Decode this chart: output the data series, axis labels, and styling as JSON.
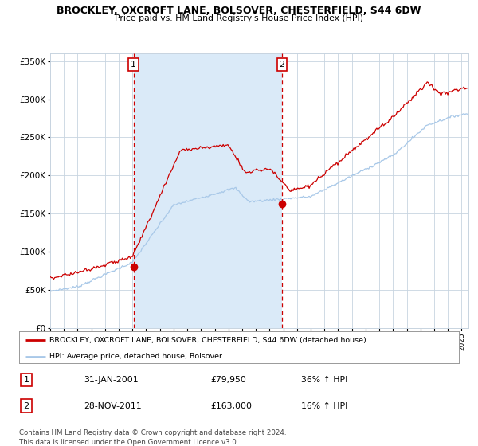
{
  "title": "BROCKLEY, OXCROFT LANE, BOLSOVER, CHESTERFIELD, S44 6DW",
  "subtitle": "Price paid vs. HM Land Registry's House Price Index (HPI)",
  "legend_line1": "BROCKLEY, OXCROFT LANE, BOLSOVER, CHESTERFIELD, S44 6DW (detached house)",
  "legend_line2": "HPI: Average price, detached house, Bolsover",
  "table_rows": [
    {
      "num": "1",
      "date": "31-JAN-2001",
      "price": "£79,950",
      "hpi": "36% ↑ HPI"
    },
    {
      "num": "2",
      "date": "28-NOV-2011",
      "price": "£163,000",
      "hpi": "16% ↑ HPI"
    }
  ],
  "footer": "Contains HM Land Registry data © Crown copyright and database right 2024.\nThis data is licensed under the Open Government Licence v3.0.",
  "ylim": [
    0,
    360000
  ],
  "yticks": [
    0,
    50000,
    100000,
    150000,
    200000,
    250000,
    300000,
    350000
  ],
  "ytick_labels": [
    "£0",
    "£50K",
    "£100K",
    "£150K",
    "£200K",
    "£250K",
    "£300K",
    "£350K"
  ],
  "sale1_year": 2001.08,
  "sale1_price": 79950,
  "sale2_year": 2011.91,
  "sale2_price": 163000,
  "hpi_color": "#a8c8e8",
  "price_color": "#cc0000",
  "shade_color": "#daeaf8",
  "vline_color": "#cc0000",
  "plot_bg_color": "#ffffff",
  "grid_color": "#c8d4e0",
  "start_year": 1995.0,
  "end_year": 2025.5
}
